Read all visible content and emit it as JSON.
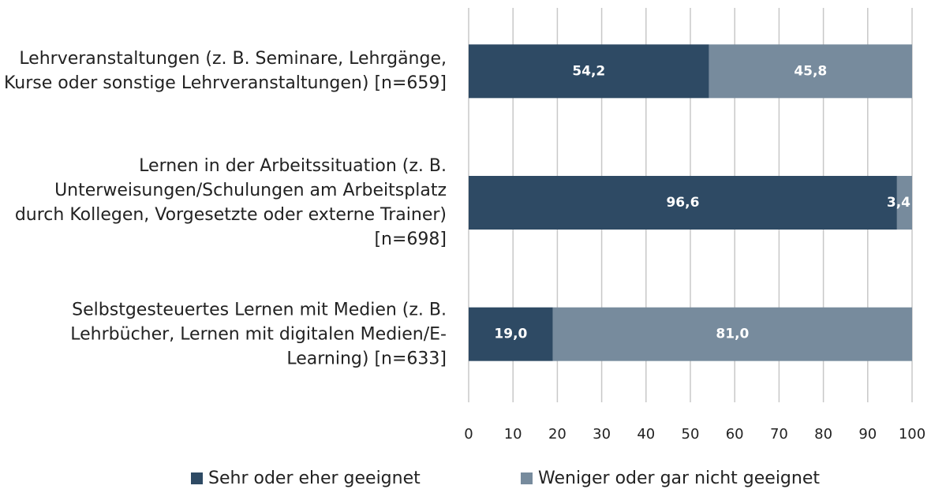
{
  "chart_data": {
    "type": "stacked_barh",
    "categories": [
      "Lehrveranstaltungen (z. B. Seminare, Lehrgänge, Kurse oder sonstige Lehrveranstaltungen) [n=659]",
      "Lernen in der Arbeitssituation (z. B. Unterweisungen/Schulungen am Arbeitsplatz durch Kollegen, Vorgesetzte oder externe Trainer) [n=698]",
      "Selbstgesteuertes Lernen mit Medien (z. B. Lehrbücher, Lernen mit digitalen Medien/E-Learning) [n=633]"
    ],
    "series": [
      {
        "name": "Sehr oder eher geeignet",
        "color": "#2e4a64",
        "values": [
          54.2,
          96.6,
          19.0
        ],
        "value_labels": [
          "54,2",
          "96,6",
          "19,0"
        ]
      },
      {
        "name": "Weniger oder gar nicht geeignet",
        "color": "#778b9d",
        "values": [
          45.8,
          3.4,
          81.0
        ],
        "value_labels": [
          "45,8",
          "3,4",
          "81,0"
        ]
      }
    ],
    "xlim": [
      0,
      100
    ],
    "xticks": [
      0,
      10,
      20,
      30,
      40,
      50,
      60,
      70,
      80,
      90,
      100
    ],
    "grid": true,
    "legend": "bottom"
  }
}
